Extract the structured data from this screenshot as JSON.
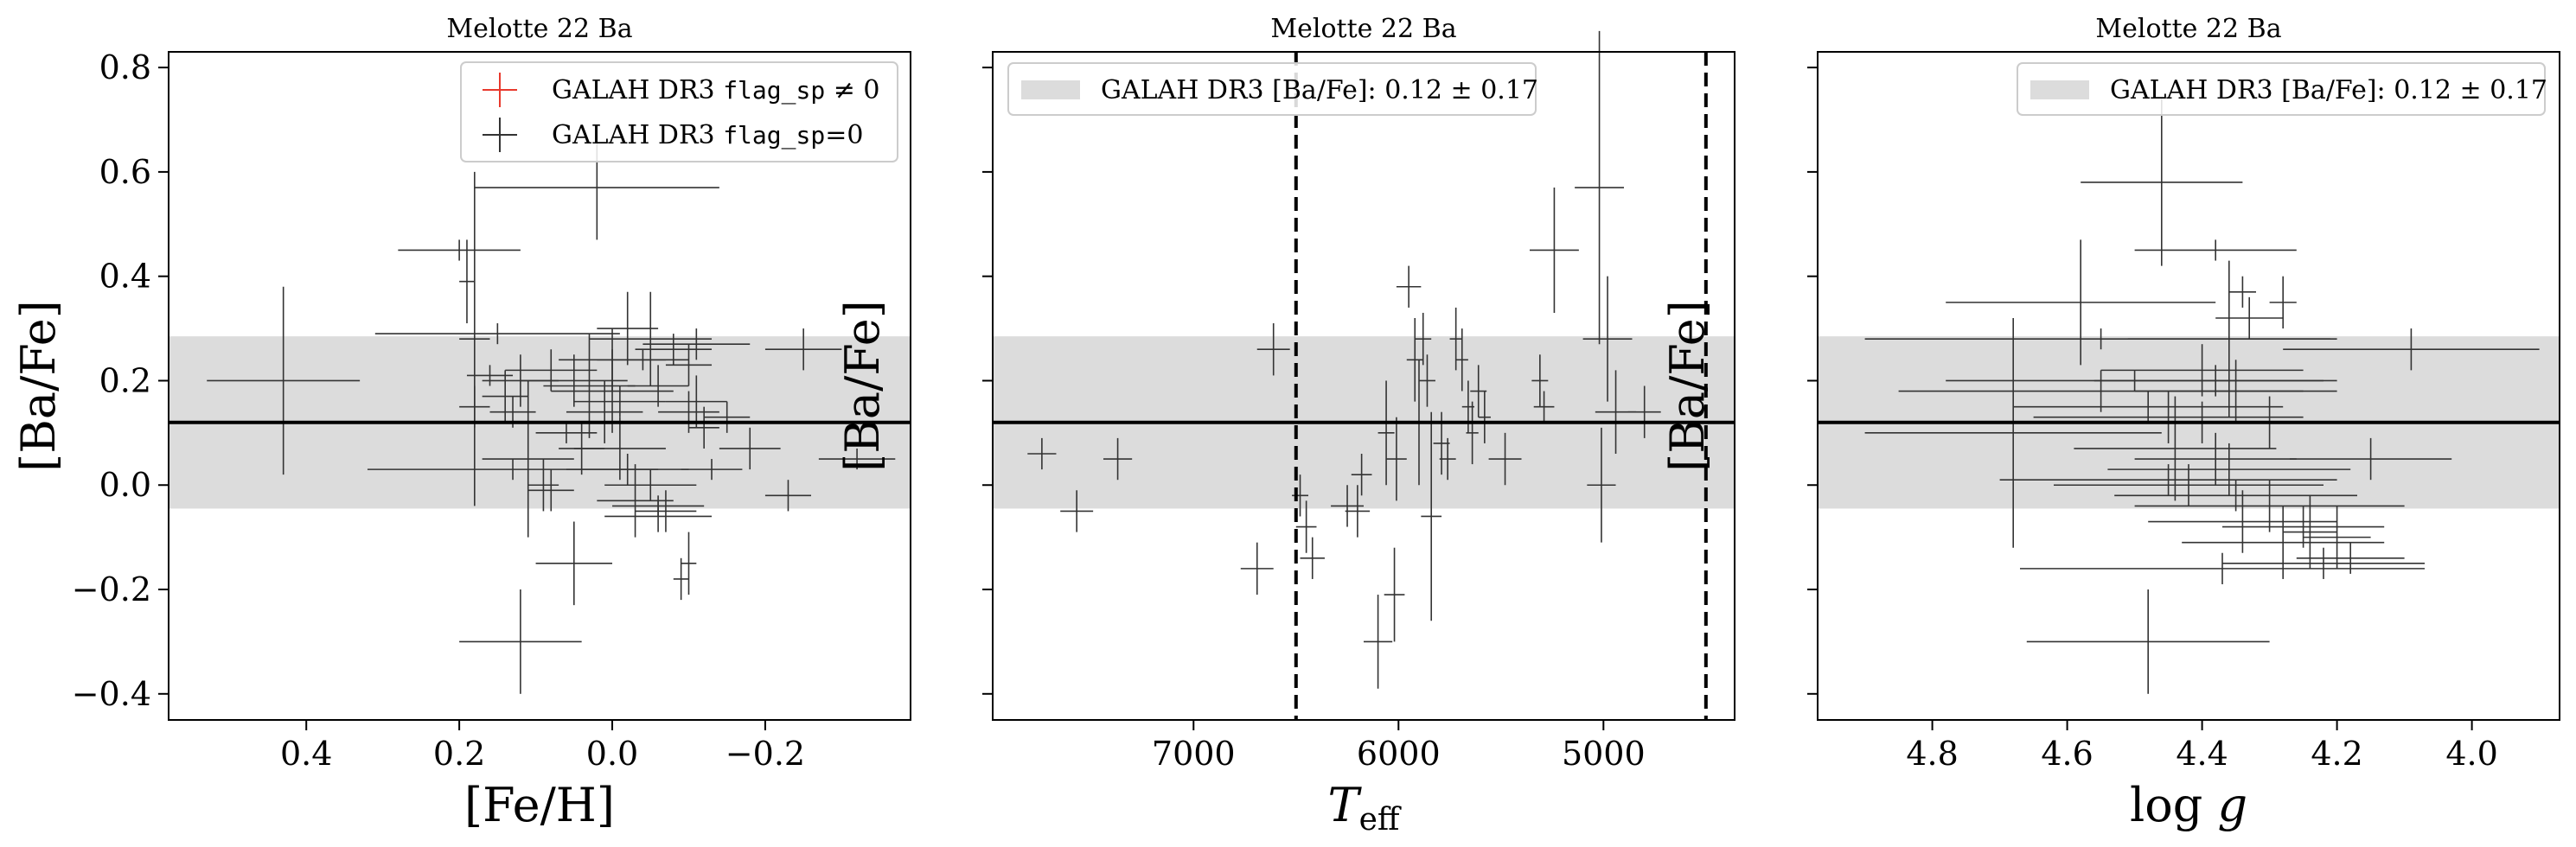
{
  "chart_data": [
    {
      "type": "scatter",
      "title": "Melotte 22 Ba",
      "xlabel": "[Fe/H]",
      "ylabel": "[Ba/Fe]",
      "xlim": [
        0.58,
        -0.39
      ],
      "ylim": [
        -0.45,
        0.83
      ],
      "xticks": [
        "0.4",
        "0.2",
        "0.0",
        "−0.2"
      ],
      "yticks": [
        "−0.4",
        "−0.2",
        "0.0",
        "0.2",
        "0.4",
        "0.6",
        "0.8"
      ],
      "legend_position": "top-right",
      "legend": [
        {
          "pre": "GALAH DR3 ",
          "mono": "flag_sp",
          "post": " ≠ 0",
          "color": "#e8392d",
          "marker": "cross"
        },
        {
          "pre": "GALAH DR3 ",
          "mono": "flag_sp",
          "post": "=0",
          "color": "#333333",
          "marker": "cross"
        }
      ],
      "reference": {
        "value": 0.12,
        "band": [
          -0.045,
          0.285
        ]
      },
      "series": [
        {
          "color": "#333333",
          "points": [
            {
              "x": 0.43,
              "y": 0.2,
              "xerr": 0.1,
              "yerr": 0.18
            },
            {
              "x": 0.02,
              "y": 0.57,
              "xerr": 0.16,
              "yerr": 0.1
            },
            {
              "x": 0.2,
              "y": 0.45,
              "xerr": 0.08,
              "yerr": 0.02
            },
            {
              "x": 0.19,
              "y": 0.39,
              "xerr": 0.01,
              "yerr": 0.08
            },
            {
              "x": 0.18,
              "y": 0.28,
              "xerr": 0.02,
              "yerr": 0.32
            },
            {
              "x": 0.15,
              "y": 0.29,
              "xerr": 0.16,
              "yerr": 0.02
            },
            {
              "x": 0.16,
              "y": 0.21,
              "xerr": 0.03,
              "yerr": 0.02
            },
            {
              "x": 0.12,
              "y": 0.2,
              "xerr": 0.05,
              "yerr": 0.05
            },
            {
              "x": 0.14,
              "y": 0.17,
              "xerr": 0.03,
              "yerr": 0.05
            },
            {
              "x": 0.18,
              "y": 0.15,
              "xerr": 0.02,
              "yerr": 0.04
            },
            {
              "x": 0.13,
              "y": 0.14,
              "xerr": 0.03,
              "yerr": 0.03
            },
            {
              "x": 0.08,
              "y": 0.22,
              "xerr": 0.06,
              "yerr": 0.04
            },
            {
              "x": 0.05,
              "y": 0.2,
              "xerr": 0.07,
              "yerr": 0.05
            },
            {
              "x": 0.03,
              "y": 0.19,
              "xerr": 0.06,
              "yerr": 0.1
            },
            {
              "x": 0.0,
              "y": 0.24,
              "xerr": 0.07,
              "yerr": 0.06
            },
            {
              "x": 0.0,
              "y": 0.18,
              "xerr": 0.08,
              "yerr": 0.08
            },
            {
              "x": -0.01,
              "y": 0.16,
              "xerr": 0.06,
              "yerr": 0.03
            },
            {
              "x": 0.01,
              "y": 0.14,
              "xerr": 0.05,
              "yerr": 0.06
            },
            {
              "x": -0.02,
              "y": 0.3,
              "xerr": 0.04,
              "yerr": 0.07
            },
            {
              "x": -0.05,
              "y": 0.28,
              "xerr": 0.08,
              "yerr": 0.09
            },
            {
              "x": -0.04,
              "y": 0.24,
              "xerr": 0.06,
              "yerr": 0.02
            },
            {
              "x": -0.08,
              "y": 0.26,
              "xerr": 0.05,
              "yerr": 0.03
            },
            {
              "x": -0.11,
              "y": 0.27,
              "xerr": 0.07,
              "yerr": 0.03
            },
            {
              "x": -0.1,
              "y": 0.23,
              "xerr": 0.03,
              "yerr": 0.04
            },
            {
              "x": -0.06,
              "y": 0.19,
              "xerr": 0.04,
              "yerr": 0.04
            },
            {
              "x": -0.11,
              "y": 0.16,
              "xerr": 0.04,
              "yerr": 0.05
            },
            {
              "x": -0.1,
              "y": 0.14,
              "xerr": 0.04,
              "yerr": 0.04
            },
            {
              "x": -0.15,
              "y": 0.13,
              "xerr": 0.03,
              "yerr": 0.03
            },
            {
              "x": -0.12,
              "y": 0.11,
              "xerr": 0.02,
              "yerr": 0.04
            },
            {
              "x": -0.25,
              "y": 0.26,
              "xerr": 0.05,
              "yerr": 0.04
            },
            {
              "x": -0.32,
              "y": 0.05,
              "xerr": 0.05,
              "yerr": 0.02
            },
            {
              "x": -0.18,
              "y": 0.07,
              "xerr": 0.04,
              "yerr": 0.04
            },
            {
              "x": -0.23,
              "y": -0.02,
              "xerr": 0.03,
              "yerr": 0.03
            },
            {
              "x": -0.13,
              "y": 0.03,
              "xerr": 0.04,
              "yerr": 0.02
            },
            {
              "x": 0.06,
              "y": 0.1,
              "xerr": 0.04,
              "yerr": 0.02
            },
            {
              "x": 0.04,
              "y": 0.07,
              "xerr": 0.03,
              "yerr": 0.05
            },
            {
              "x": 0.13,
              "y": 0.03,
              "xerr": 0.19,
              "yerr": 0.02
            },
            {
              "x": 0.11,
              "y": 0.05,
              "xerr": 0.06,
              "yerr": 0.15
            },
            {
              "x": 0.09,
              "y": 0.0,
              "xerr": 0.02,
              "yerr": 0.05
            },
            {
              "x": 0.08,
              "y": -0.01,
              "xerr": 0.03,
              "yerr": 0.04
            },
            {
              "x": -0.01,
              "y": 0.07,
              "xerr": 0.06,
              "yerr": 0.06
            },
            {
              "x": -0.02,
              "y": 0.03,
              "xerr": 0.08,
              "yerr": 0.03
            },
            {
              "x": -0.05,
              "y": 0.0,
              "xerr": 0.06,
              "yerr": 0.03
            },
            {
              "x": -0.03,
              "y": -0.03,
              "xerr": 0.05,
              "yerr": 0.07
            },
            {
              "x": -0.06,
              "y": -0.06,
              "xerr": 0.07,
              "yerr": 0.03
            },
            {
              "x": -0.07,
              "y": -0.05,
              "xerr": 0.04,
              "yerr": 0.04
            },
            {
              "x": 0.05,
              "y": -0.15,
              "xerr": 0.05,
              "yerr": 0.08
            },
            {
              "x": -0.1,
              "y": -0.15,
              "xerr": 0.01,
              "yerr": 0.06
            },
            {
              "x": -0.09,
              "y": -0.18,
              "xerr": 0.01,
              "yerr": 0.04
            },
            {
              "x": -0.06,
              "y": -0.04,
              "xerr": 0.06,
              "yerr": 0.02
            },
            {
              "x": 0.12,
              "y": -0.3,
              "xerr": 0.08,
              "yerr": 0.1
            }
          ]
        }
      ]
    },
    {
      "type": "scatter",
      "title": "Melotte 22 Ba",
      "xlabel": "T_eff",
      "ylabel": "[Ba/Fe]",
      "xlim": [
        7980,
        4360
      ],
      "ylim": [
        -0.45,
        0.83
      ],
      "xticks": [
        "7000",
        "6000",
        "5000"
      ],
      "yticks": [],
      "legend_position": "top-left",
      "legend": [
        {
          "pre": "GALAH DR3 [Ba/Fe]: 0.12 ± 0.17",
          "mono": "",
          "post": "",
          "color": "#dcdcdc",
          "marker": "band"
        }
      ],
      "reference": {
        "value": 0.12,
        "band": [
          -0.045,
          0.285
        ]
      },
      "vlines": [
        6500,
        4500
      ],
      "series": [
        {
          "color": "#333333",
          "points": [
            {
              "x": 7740,
              "y": 0.06,
              "xerr": 70,
              "yerr": 0.03
            },
            {
              "x": 7570,
              "y": -0.05,
              "xerr": 80,
              "yerr": 0.04
            },
            {
              "x": 7370,
              "y": 0.05,
              "xerr": 70,
              "yerr": 0.04
            },
            {
              "x": 6610,
              "y": 0.26,
              "xerr": 80,
              "yerr": 0.05
            },
            {
              "x": 6690,
              "y": -0.16,
              "xerr": 80,
              "yerr": 0.05
            },
            {
              "x": 6450,
              "y": -0.08,
              "xerr": 50,
              "yerr": 0.05
            },
            {
              "x": 6420,
              "y": -0.14,
              "xerr": 60,
              "yerr": 0.04
            },
            {
              "x": 6480,
              "y": -0.02,
              "xerr": 40,
              "yerr": 0.04
            },
            {
              "x": 6250,
              "y": -0.04,
              "xerr": 80,
              "yerr": 0.04
            },
            {
              "x": 6200,
              "y": -0.05,
              "xerr": 60,
              "yerr": 0.05
            },
            {
              "x": 6180,
              "y": 0.02,
              "xerr": 50,
              "yerr": 0.04
            },
            {
              "x": 6100,
              "y": -0.3,
              "xerr": 70,
              "yerr": 0.09
            },
            {
              "x": 6020,
              "y": -0.21,
              "xerr": 50,
              "yerr": 0.09
            },
            {
              "x": 6060,
              "y": 0.1,
              "xerr": 40,
              "yerr": 0.1
            },
            {
              "x": 6010,
              "y": 0.05,
              "xerr": 50,
              "yerr": 0.08
            },
            {
              "x": 5950,
              "y": 0.38,
              "xerr": 60,
              "yerr": 0.04
            },
            {
              "x": 5920,
              "y": 0.24,
              "xerr": 40,
              "yerr": 0.08
            },
            {
              "x": 5880,
              "y": 0.28,
              "xerr": 40,
              "yerr": 0.05
            },
            {
              "x": 5860,
              "y": 0.2,
              "xerr": 40,
              "yerr": 0.05
            },
            {
              "x": 5900,
              "y": 0.12,
              "xerr": 50,
              "yerr": 0.12
            },
            {
              "x": 5840,
              "y": -0.06,
              "xerr": 50,
              "yerr": 0.2
            },
            {
              "x": 5790,
              "y": 0.08,
              "xerr": 40,
              "yerr": 0.06
            },
            {
              "x": 5760,
              "y": 0.05,
              "xerr": 40,
              "yerr": 0.04
            },
            {
              "x": 5720,
              "y": 0.28,
              "xerr": 30,
              "yerr": 0.06
            },
            {
              "x": 5690,
              "y": 0.24,
              "xerr": 30,
              "yerr": 0.06
            },
            {
              "x": 5660,
              "y": 0.15,
              "xerr": 30,
              "yerr": 0.05
            },
            {
              "x": 5640,
              "y": 0.1,
              "xerr": 30,
              "yerr": 0.06
            },
            {
              "x": 5610,
              "y": 0.18,
              "xerr": 40,
              "yerr": 0.05
            },
            {
              "x": 5580,
              "y": 0.13,
              "xerr": 30,
              "yerr": 0.05
            },
            {
              "x": 5480,
              "y": 0.05,
              "xerr": 80,
              "yerr": 0.05
            },
            {
              "x": 5310,
              "y": 0.2,
              "xerr": 40,
              "yerr": 0.05
            },
            {
              "x": 5290,
              "y": 0.15,
              "xerr": 50,
              "yerr": 0.03
            },
            {
              "x": 5240,
              "y": 0.45,
              "xerr": 120,
              "yerr": 0.12
            },
            {
              "x": 5020,
              "y": 0.57,
              "xerr": 120,
              "yerr": 0.3
            },
            {
              "x": 4980,
              "y": 0.28,
              "xerr": 120,
              "yerr": 0.12
            },
            {
              "x": 4940,
              "y": 0.14,
              "xerr": 100,
              "yerr": 0.08
            },
            {
              "x": 5010,
              "y": 0.0,
              "xerr": 70,
              "yerr": 0.11
            },
            {
              "x": 4800,
              "y": 0.14,
              "xerr": 80,
              "yerr": 0.05
            }
          ]
        }
      ]
    },
    {
      "type": "scatter",
      "title": "Melotte 22 Ba",
      "xlabel": "log g",
      "ylabel": "[Ba/Fe]",
      "xlim": [
        4.97,
        3.87
      ],
      "ylim": [
        -0.45,
        0.83
      ],
      "xticks": [
        "4.8",
        "4.6",
        "4.4",
        "4.2",
        "4.0"
      ],
      "yticks": [],
      "legend_position": "top-right",
      "legend": [
        {
          "pre": "GALAH DR3 [Ba/Fe]: 0.12 ± 0.17",
          "mono": "",
          "post": "",
          "color": "#dcdcdc",
          "marker": "band"
        }
      ],
      "reference": {
        "value": 0.12,
        "band": [
          -0.045,
          0.285
        ]
      },
      "series": [
        {
          "color": "#333333",
          "points": [
            {
              "x": 4.46,
              "y": 0.58,
              "xerr": 0.12,
              "yerr": 0.16
            },
            {
              "x": 4.58,
              "y": 0.35,
              "xerr": 0.2,
              "yerr": 0.12
            },
            {
              "x": 4.38,
              "y": 0.45,
              "xerr": 0.12,
              "yerr": 0.02
            },
            {
              "x": 4.28,
              "y": 0.35,
              "xerr": 0.02,
              "yerr": 0.05
            },
            {
              "x": 4.34,
              "y": 0.37,
              "xerr": 0.02,
              "yerr": 0.03
            },
            {
              "x": 4.33,
              "y": 0.32,
              "xerr": 0.05,
              "yerr": 0.04
            },
            {
              "x": 4.68,
              "y": 0.1,
              "xerr": 0.22,
              "yerr": 0.22
            },
            {
              "x": 4.09,
              "y": 0.26,
              "xerr": 0.19,
              "yerr": 0.04
            },
            {
              "x": 4.55,
              "y": 0.28,
              "xerr": 0.35,
              "yerr": 0.02
            },
            {
              "x": 4.5,
              "y": 0.2,
              "xerr": 0.28,
              "yerr": 0.02
            },
            {
              "x": 4.55,
              "y": 0.18,
              "xerr": 0.3,
              "yerr": 0.04
            },
            {
              "x": 4.4,
              "y": 0.22,
              "xerr": 0.15,
              "yerr": 0.05
            },
            {
              "x": 4.38,
              "y": 0.2,
              "xerr": 0.18,
              "yerr": 0.03
            },
            {
              "x": 4.35,
              "y": 0.18,
              "xerr": 0.15,
              "yerr": 0.06
            },
            {
              "x": 4.48,
              "y": 0.15,
              "xerr": 0.2,
              "yerr": 0.03
            },
            {
              "x": 4.45,
              "y": 0.13,
              "xerr": 0.2,
              "yerr": 0.05
            },
            {
              "x": 4.4,
              "y": 0.12,
              "xerr": 0.25,
              "yerr": 0.04
            },
            {
              "x": 4.36,
              "y": 0.28,
              "xerr": 0.15,
              "yerr": 0.15
            },
            {
              "x": 4.44,
              "y": 0.07,
              "xerr": 0.15,
              "yerr": 0.1
            },
            {
              "x": 4.38,
              "y": 0.05,
              "xerr": 0.12,
              "yerr": 0.05
            },
            {
              "x": 4.36,
              "y": 0.03,
              "xerr": 0.18,
              "yerr": 0.05
            },
            {
              "x": 4.45,
              "y": 0.01,
              "xerr": 0.25,
              "yerr": 0.03
            },
            {
              "x": 4.42,
              "y": 0.0,
              "xerr": 0.2,
              "yerr": 0.04
            },
            {
              "x": 4.35,
              "y": -0.02,
              "xerr": 0.18,
              "yerr": 0.03
            },
            {
              "x": 4.3,
              "y": -0.04,
              "xerr": 0.2,
              "yerr": 0.05
            },
            {
              "x": 4.34,
              "y": -0.07,
              "xerr": 0.14,
              "yerr": 0.06
            },
            {
              "x": 4.25,
              "y": -0.08,
              "xerr": 0.12,
              "yerr": 0.04
            },
            {
              "x": 4.28,
              "y": -0.11,
              "xerr": 0.15,
              "yerr": 0.07
            },
            {
              "x": 4.22,
              "y": -0.15,
              "xerr": 0.15,
              "yerr": 0.03
            },
            {
              "x": 4.18,
              "y": -0.14,
              "xerr": 0.08,
              "yerr": 0.03
            },
            {
              "x": 4.37,
              "y": -0.16,
              "xerr": 0.3,
              "yerr": 0.03
            },
            {
              "x": 4.24,
              "y": -0.09,
              "xerr": 0.04,
              "yerr": 0.07
            },
            {
              "x": 4.2,
              "y": -0.1,
              "xerr": 0.05,
              "yerr": 0.06
            },
            {
              "x": 4.15,
              "y": 0.05,
              "xerr": 0.12,
              "yerr": 0.04
            },
            {
              "x": 4.3,
              "y": 0.12,
              "xerr": 0.12,
              "yerr": 0.05
            },
            {
              "x": 4.48,
              "y": -0.3,
              "xerr": 0.18,
              "yerr": 0.1
            }
          ]
        }
      ]
    }
  ]
}
